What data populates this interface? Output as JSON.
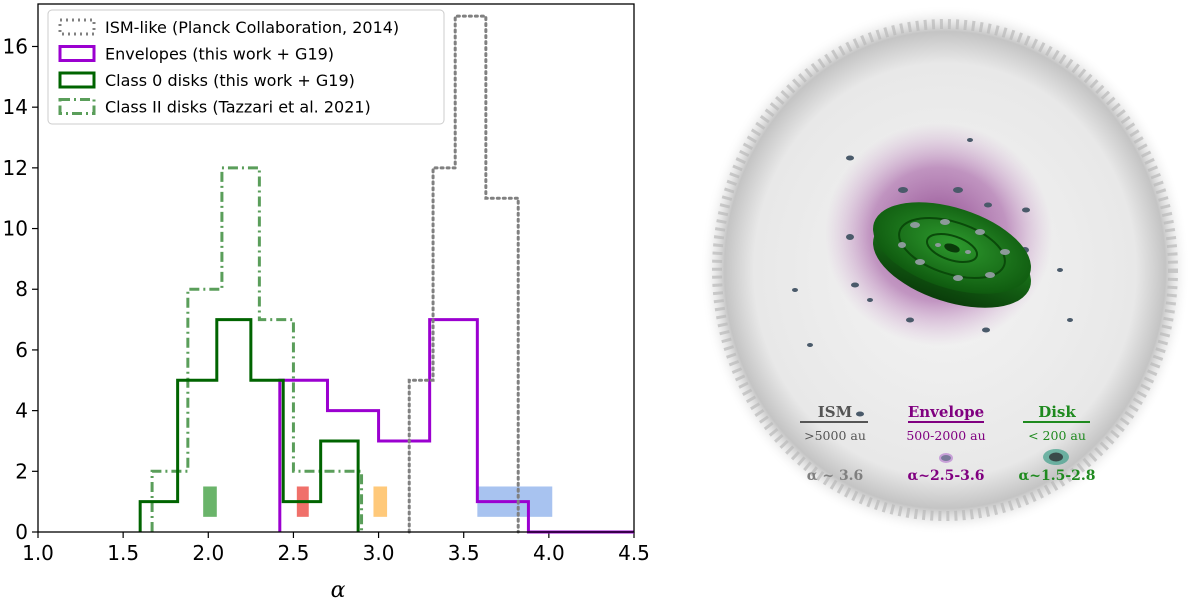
{
  "chart_data": {
    "type": "histogram",
    "xlabel": "α",
    "ylabel": "",
    "xlim": [
      1.0,
      4.5
    ],
    "ylim": [
      0,
      17.4
    ],
    "xticks": [
      "1.0",
      "1.5",
      "2.0",
      "2.5",
      "3.0",
      "3.5",
      "4.0",
      "4.5"
    ],
    "yticks": [
      "0",
      "2",
      "4",
      "6",
      "8",
      "10",
      "12",
      "14",
      "16"
    ],
    "legend_position": "top-left",
    "series": [
      {
        "name": "ISM-like (Planck Collaboration, 2014)",
        "style": "dotted",
        "color": "#808080",
        "edges": [
          3.18,
          3.32,
          3.45,
          3.63,
          3.82
        ],
        "counts": [
          5,
          12,
          17,
          11
        ]
      },
      {
        "name": "Envelopes (this work + G19)",
        "style": "solid",
        "color": "#9b00d0",
        "edges": [
          2.42,
          2.7,
          3.0,
          3.3,
          3.58,
          3.88,
          4.5
        ],
        "counts": [
          5,
          4,
          3,
          7,
          1,
          0
        ]
      },
      {
        "name": "Class 0 disks (this work + G19)",
        "style": "solid",
        "color": "#006400",
        "edges": [
          1.6,
          1.82,
          2.05,
          2.25,
          2.44,
          2.66,
          2.88
        ],
        "counts": [
          1,
          5,
          7,
          5,
          1,
          3
        ]
      },
      {
        "name": "Class II disks (Tazzari et al. 2021)",
        "style": "dashdot",
        "color": "#5a9e5a",
        "edges": [
          1.67,
          1.88,
          2.08,
          2.3,
          2.5,
          2.7,
          2.9
        ],
        "counts": [
          2,
          8,
          12,
          7,
          2,
          2
        ]
      }
    ],
    "boxes": [
      {
        "x": [
          1.97,
          2.05
        ],
        "y": [
          0.5,
          1.5
        ],
        "color": "#6ab46a"
      },
      {
        "x": [
          2.52,
          2.59
        ],
        "y": [
          0.5,
          1.5
        ],
        "color": "#f0706a"
      },
      {
        "x": [
          2.97,
          3.05
        ],
        "y": [
          0.5,
          1.5
        ],
        "color": "#ffc97a"
      },
      {
        "x": [
          3.58,
          4.02
        ],
        "y": [
          0.5,
          1.5
        ],
        "color": "#a8c3f0"
      }
    ]
  },
  "illustration": {
    "labels": [
      {
        "title": "ISM",
        "sub": ">5000 au",
        "alpha": "α ~ 3.6",
        "color": "#555555"
      },
      {
        "title": "Envelope",
        "sub": "500-2000 au",
        "alpha": "α~2.5-3.6",
        "color": "#800080"
      },
      {
        "title": "Disk",
        "sub": "< 200 au",
        "alpha": "α~1.5-2.8",
        "color": "#1f8a1f"
      }
    ]
  }
}
